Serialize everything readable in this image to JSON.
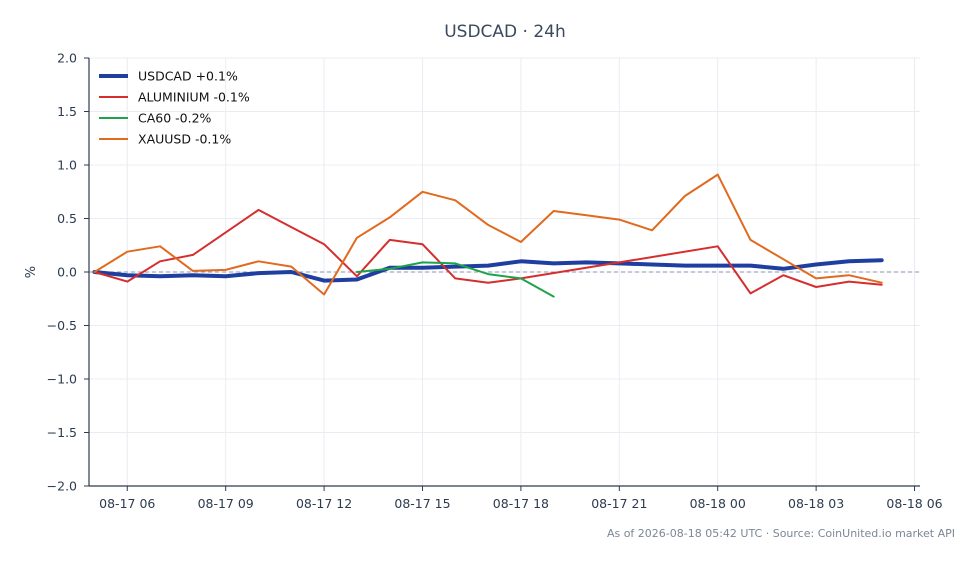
{
  "chart_data": {
    "type": "line",
    "title": "USDCAD · 24h",
    "ylabel": "%",
    "xlabel": "",
    "ylim": [
      -2.0,
      2.0
    ],
    "yticks": [
      2.0,
      1.5,
      1.0,
      0.5,
      0.0,
      -0.5,
      -1.0,
      -1.5,
      -2.0
    ],
    "ytick_labels": [
      "2.0",
      "1.5",
      "1.0",
      "0.5",
      "0.0",
      "−0.5",
      "−1.0",
      "−1.5",
      "−2.0"
    ],
    "xlim": [
      "2026-08-17T04:50",
      "2026-08-18T06:10"
    ],
    "xticks": [
      "2026-08-17T06:00",
      "2026-08-17T09:00",
      "2026-08-17T12:00",
      "2026-08-17T15:00",
      "2026-08-17T18:00",
      "2026-08-17T21:00",
      "2026-08-18T00:00",
      "2026-08-18T03:00",
      "2026-08-18T06:00"
    ],
    "xtick_labels": [
      "08-17 06",
      "08-17 09",
      "08-17 12",
      "08-17 15",
      "08-17 18",
      "08-17 21",
      "08-18 00",
      "08-18 03",
      "08-18 06"
    ],
    "grid": true,
    "zero_line": true,
    "legend_position": "top-left",
    "series": [
      {
        "name": "USDCAD +0.1%",
        "color": "#1f3fa0",
        "width": "bold",
        "x": [
          "2026-08-17T05:00",
          "2026-08-17T06:00",
          "2026-08-17T07:00",
          "2026-08-17T08:00",
          "2026-08-17T09:00",
          "2026-08-17T10:00",
          "2026-08-17T11:00",
          "2026-08-17T12:00",
          "2026-08-17T13:00",
          "2026-08-17T14:00",
          "2026-08-17T15:00",
          "2026-08-17T16:00",
          "2026-08-17T17:00",
          "2026-08-17T18:00",
          "2026-08-17T19:00",
          "2026-08-17T20:00",
          "2026-08-17T21:00",
          "2026-08-17T22:00",
          "2026-08-17T23:00",
          "2026-08-18T00:00",
          "2026-08-18T01:00",
          "2026-08-18T02:00",
          "2026-08-18T03:00",
          "2026-08-18T04:00",
          "2026-08-18T05:00"
        ],
        "y": [
          0.0,
          -0.03,
          -0.04,
          -0.03,
          -0.04,
          -0.01,
          0.0,
          -0.08,
          -0.07,
          0.04,
          0.04,
          0.05,
          0.06,
          0.1,
          0.08,
          0.09,
          0.08,
          0.07,
          0.06,
          0.06,
          0.06,
          0.03,
          0.07,
          0.1,
          0.11
        ]
      },
      {
        "name": "ALUMINIUM -0.1%",
        "color": "#d62d2d",
        "width": "normal",
        "x": [
          "2026-08-17T05:00",
          "2026-08-17T06:00",
          "2026-08-17T07:00",
          "2026-08-17T08:00",
          "2026-08-17T09:00",
          "2026-08-17T10:00",
          "2026-08-17T11:00",
          "2026-08-17T12:00",
          "2026-08-17T13:00",
          "2026-08-17T14:00",
          "2026-08-17T15:00",
          "2026-08-17T16:00",
          "2026-08-17T17:00",
          "2026-08-17T18:00",
          "2026-08-17T21:00",
          "2026-08-18T00:00",
          "2026-08-18T01:00",
          "2026-08-18T02:00",
          "2026-08-18T03:00",
          "2026-08-18T04:00",
          "2026-08-18T05:00"
        ],
        "y": [
          0.0,
          -0.09,
          0.1,
          0.16,
          0.37,
          0.58,
          0.42,
          0.26,
          -0.04,
          0.3,
          0.26,
          -0.06,
          -0.1,
          -0.06,
          0.09,
          0.24,
          -0.2,
          -0.03,
          -0.14,
          -0.09,
          -0.12
        ]
      },
      {
        "name": "CA60 -0.2%",
        "color": "#1fa34a",
        "width": "normal",
        "x": [
          "2026-08-17T13:00",
          "2026-08-17T14:00",
          "2026-08-17T15:00",
          "2026-08-17T16:00",
          "2026-08-17T17:00",
          "2026-08-17T18:00",
          "2026-08-17T19:00"
        ],
        "y": [
          0.0,
          0.03,
          0.09,
          0.08,
          -0.02,
          -0.06,
          -0.23
        ]
      },
      {
        "name": "XAUUSD -0.1%",
        "color": "#e06a1e",
        "width": "normal",
        "x": [
          "2026-08-17T05:00",
          "2026-08-17T06:00",
          "2026-08-17T07:00",
          "2026-08-17T08:00",
          "2026-08-17T09:00",
          "2026-08-17T10:00",
          "2026-08-17T11:00",
          "2026-08-17T12:00",
          "2026-08-17T13:00",
          "2026-08-17T14:00",
          "2026-08-17T15:00",
          "2026-08-17T16:00",
          "2026-08-17T17:00",
          "2026-08-17T18:00",
          "2026-08-17T19:00",
          "2026-08-17T20:00",
          "2026-08-17T21:00",
          "2026-08-17T22:00",
          "2026-08-17T23:00",
          "2026-08-18T00:00",
          "2026-08-18T01:00",
          "2026-08-18T02:00",
          "2026-08-18T03:00",
          "2026-08-18T04:00",
          "2026-08-18T05:00"
        ],
        "y": [
          0.0,
          0.19,
          0.24,
          0.01,
          0.02,
          0.1,
          0.05,
          -0.21,
          0.32,
          0.51,
          0.75,
          0.67,
          0.44,
          0.28,
          0.57,
          0.53,
          0.49,
          0.39,
          0.71,
          0.91,
          0.3,
          0.12,
          -0.06,
          -0.03,
          -0.1
        ]
      }
    ]
  },
  "footer": {
    "text": "As of 2026-08-18 05:42 UTC · Source: CoinUnited.io market API"
  },
  "colors": {
    "axis": "#2d3b4e",
    "grid": "#e9ecf1",
    "zero_line": "#8a93b8"
  }
}
